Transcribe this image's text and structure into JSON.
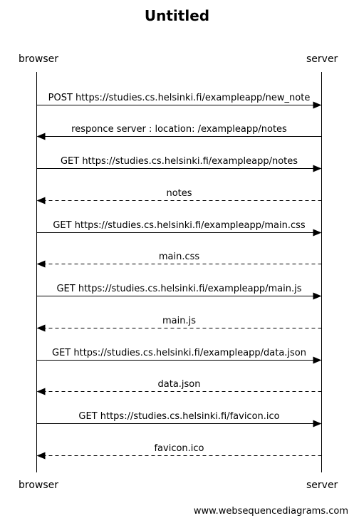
{
  "diagram": {
    "title": "Untitled",
    "actors": {
      "left": "browser",
      "right": "server"
    },
    "messages": [
      {
        "label": "POST https://studies.cs.helsinki.fi/exampleapp/new_note",
        "direction": "right",
        "style": "solid"
      },
      {
        "label": "responce server : location: /exampleapp/notes",
        "direction": "left",
        "style": "solid"
      },
      {
        "label": "GET https://studies.cs.helsinki.fi/exampleapp/notes",
        "direction": "right",
        "style": "solid"
      },
      {
        "label": "notes",
        "direction": "left",
        "style": "dashed"
      },
      {
        "label": "GET https://studies.cs.helsinki.fi/exampleapp/main.css",
        "direction": "right",
        "style": "solid"
      },
      {
        "label": "main.css",
        "direction": "left",
        "style": "dashed"
      },
      {
        "label": "GET https://studies.cs.helsinki.fi/exampleapp/main.js",
        "direction": "right",
        "style": "solid"
      },
      {
        "label": "main.js",
        "direction": "left",
        "style": "dashed"
      },
      {
        "label": "GET https://studies.cs.helsinki.fi/exampleapp/data.json",
        "direction": "right",
        "style": "solid"
      },
      {
        "label": "data.json",
        "direction": "left",
        "style": "dashed"
      },
      {
        "label": "GET https://studies.cs.helsinki.fi/favicon.ico",
        "direction": "right",
        "style": "solid"
      },
      {
        "label": "favicon.ico",
        "direction": "left",
        "style": "dashed"
      }
    ],
    "watermark": "www.websequencediagrams.com"
  }
}
